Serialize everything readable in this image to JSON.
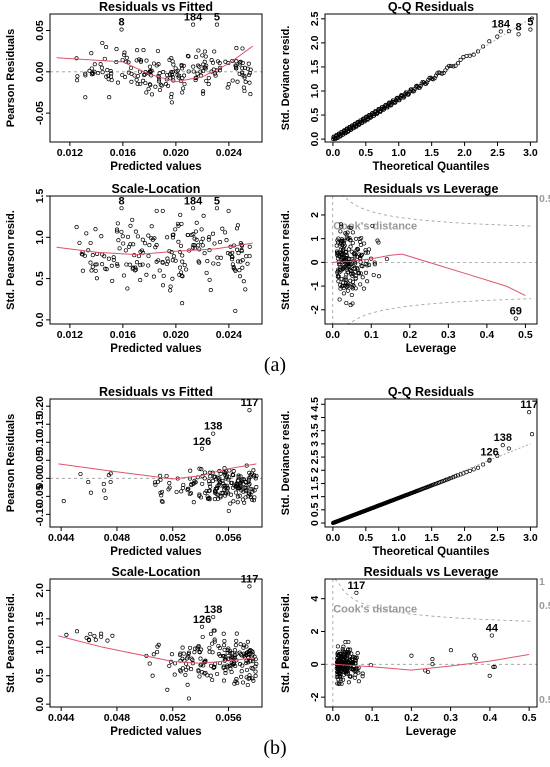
{
  "labels": {
    "a": "(a)",
    "b": "(b)"
  },
  "panels": [
    {
      "id": "a-rvf",
      "title": "Residuals vs Fitted",
      "xlabel": "Predicted values",
      "ylabel": "Pearson Residuals",
      "xlim": [
        0.0105,
        0.0265
      ],
      "ylim": [
        -0.085,
        0.07
      ],
      "xticks": [
        0.012,
        0.016,
        0.02,
        0.024
      ],
      "xtick_labels": [
        "0.012",
        "0.016",
        "0.020",
        "0.024"
      ],
      "yticks": [
        -0.05,
        0,
        0.05
      ],
      "ytick_labels": [
        "-0.05",
        "0.00",
        "0.05"
      ],
      "hline": 0,
      "n": 200,
      "seed": 11,
      "dist": "a_fit",
      "smooth": [
        [
          0.011,
          0.017
        ],
        [
          0.016,
          0.012
        ],
        [
          0.018,
          -0.003
        ],
        [
          0.02,
          -0.012
        ],
        [
          0.022,
          -0.006
        ],
        [
          0.024,
          0.01
        ],
        [
          0.0258,
          0.031
        ]
      ],
      "obs": [
        {
          "label": "8",
          "x": 0.0159,
          "y": 0.056
        },
        {
          "label": "184",
          "x": 0.0213,
          "y": 0.062
        },
        {
          "label": "5",
          "x": 0.0231,
          "y": 0.062
        }
      ]
    },
    {
      "id": "a-qq",
      "title": "Q-Q Residuals",
      "xlabel": "Theoretical Quantiles",
      "ylabel": "Std. Deviance resid.",
      "xlim": [
        -0.12,
        3.1
      ],
      "ylim": [
        -0.06,
        2.6
      ],
      "xticks": [
        0,
        0.5,
        1,
        1.5,
        2,
        2.5,
        3
      ],
      "xtick_labels": [
        "0.0",
        "0.5",
        "1.0",
        "1.5",
        "2.0",
        "2.5",
        "3.0"
      ],
      "yticks": [
        0,
        0.5,
        1,
        1.5,
        2,
        2.5
      ],
      "ytick_labels": [
        "0.0",
        "0.5",
        "1.0",
        "1.5",
        "2.0",
        "2.5"
      ],
      "refline": [
        [
          0,
          0
        ],
        [
          3,
          2.5
        ]
      ],
      "n": 200,
      "seed": 21,
      "dist": "a_qq",
      "obs": [
        {
          "label": "184",
          "x": 2.55,
          "y": 2.32
        },
        {
          "label": "8",
          "x": 2.82,
          "y": 2.26
        },
        {
          "label": "5",
          "x": 3.0,
          "y": 2.36
        }
      ]
    },
    {
      "id": "a-sl",
      "title": "Scale-Location",
      "xlabel": "Predicted values",
      "ylabel": "Std. Pearson resid.",
      "xlim": [
        0.0105,
        0.0265
      ],
      "ylim": [
        -0.05,
        1.5
      ],
      "xticks": [
        0.012,
        0.016,
        0.02,
        0.024
      ],
      "xtick_labels": [
        "0.012",
        "0.016",
        "0.020",
        "0.024"
      ],
      "yticks": [
        0,
        0.5,
        1,
        1.5
      ],
      "ytick_labels": [
        "0.0",
        "0.5",
        "1.0",
        "1.5"
      ],
      "n": 200,
      "seed": 31,
      "dist": "a_sl",
      "smooth": [
        [
          0.011,
          0.88
        ],
        [
          0.014,
          0.82
        ],
        [
          0.017,
          0.79
        ],
        [
          0.02,
          0.83
        ],
        [
          0.023,
          0.86
        ],
        [
          0.0258,
          0.93
        ]
      ],
      "obs": [
        {
          "label": "8",
          "x": 0.0159,
          "y": 1.4
        },
        {
          "label": "184",
          "x": 0.0213,
          "y": 1.4
        },
        {
          "label": "5",
          "x": 0.0231,
          "y": 1.4
        }
      ]
    },
    {
      "id": "a-rvl",
      "title": "Residuals vs Leverage",
      "xlabel": "Leverage",
      "ylabel": "Std. Pearson resid.",
      "xlim": [
        -0.02,
        0.53
      ],
      "ylim": [
        -2.6,
        2.8
      ],
      "xticks": [
        0,
        0.1,
        0.2,
        0.3,
        0.4,
        0.5
      ],
      "xtick_labels": [
        "0.0",
        "0.1",
        "0.2",
        "0.3",
        "0.4",
        "0.5"
      ],
      "yticks": [
        -2,
        -1,
        0,
        1,
        2
      ],
      "ytick_labels": [
        "-2",
        "-1",
        "0",
        "1",
        "2"
      ],
      "hline": 0,
      "vline": 0,
      "n": 200,
      "seed": 41,
      "dist": "a_lev",
      "smooth": [
        [
          0.0,
          0.0
        ],
        [
          0.05,
          0.05
        ],
        [
          0.1,
          0.15
        ],
        [
          0.15,
          0.3
        ],
        [
          0.18,
          0.35
        ],
        [
          0.25,
          0.0
        ],
        [
          0.35,
          -0.5
        ],
        [
          0.45,
          -1.0
        ],
        [
          0.5,
          -1.4
        ]
      ],
      "cook_label": "Cook's distance",
      "cook_levels": [
        "0.5"
      ],
      "obs": [
        {
          "label": "69",
          "x": 0.475,
          "y": -2.2
        }
      ]
    },
    {
      "id": "b-rvf",
      "title": "Residuals vs Fitted",
      "xlabel": "Predicted values",
      "ylabel": "Pearson Residuals",
      "xlim": [
        0.0432,
        0.0584
      ],
      "ylim": [
        -0.135,
        0.22
      ],
      "xticks": [
        0.044,
        0.048,
        0.052,
        0.056
      ],
      "xtick_labels": [
        "0.044",
        "0.048",
        "0.052",
        "0.056"
      ],
      "yticks": [
        -0.1,
        -0.05,
        0,
        0.05,
        0.1,
        0.15,
        0.2
      ],
      "ytick_labels": [
        "-0.10",
        "-0.05",
        "0.00",
        "0.05",
        "0.10",
        "0.15",
        "0.20"
      ],
      "hline": 0,
      "n": 200,
      "seed": 51,
      "dist": "b_fit",
      "smooth": [
        [
          0.0438,
          0.04
        ],
        [
          0.047,
          0.023
        ],
        [
          0.05,
          0.008
        ],
        [
          0.052,
          -0.002
        ],
        [
          0.054,
          0.007
        ],
        [
          0.0558,
          0.025
        ],
        [
          0.058,
          0.04
        ]
      ],
      "obs": [
        {
          "label": "117",
          "x": 0.0575,
          "y": 0.2
        },
        {
          "label": "138",
          "x": 0.0549,
          "y": 0.135
        },
        {
          "label": "126",
          "x": 0.0541,
          "y": 0.093
        }
      ]
    },
    {
      "id": "b-qq",
      "title": "Q-Q Residuals",
      "xlabel": "Theoretical Quantiles",
      "ylabel": "Std. Deviance resid.",
      "xlim": [
        -0.12,
        3.1
      ],
      "ylim": [
        -0.15,
        4.7
      ],
      "xticks": [
        0,
        0.5,
        1,
        1.5,
        2,
        2.5,
        3
      ],
      "xtick_labels": [
        "0.0",
        "0.5",
        "1.0",
        "1.5",
        "2.0",
        "2.5",
        "3.0"
      ],
      "yticks": [
        0,
        0.5,
        1,
        1.5,
        2,
        2.5,
        3,
        3.5,
        4,
        4.5
      ],
      "ytick_labels": [
        "0",
        "0.5",
        "1",
        "1.5",
        "2",
        "2.5",
        "3",
        "3.5",
        "4",
        "4.5"
      ],
      "refline": [
        [
          0,
          0
        ],
        [
          3,
          3
        ]
      ],
      "n": 200,
      "seed": 61,
      "dist": "b_qq",
      "obs": [
        {
          "label": "117",
          "x": 2.98,
          "y": 4.35
        },
        {
          "label": "138",
          "x": 2.58,
          "y": 3.1
        },
        {
          "label": "126",
          "x": 2.38,
          "y": 2.55
        }
      ]
    },
    {
      "id": "b-sl",
      "title": "Scale-Location",
      "xlabel": "Predicted values",
      "ylabel": "Std. Pearson resid.",
      "xlim": [
        0.0432,
        0.0584
      ],
      "ylim": [
        -0.05,
        2.2
      ],
      "xticks": [
        0.044,
        0.048,
        0.052,
        0.056
      ],
      "xtick_labels": [
        "0.044",
        "0.048",
        "0.052",
        "0.056"
      ],
      "yticks": [
        0,
        0.5,
        1,
        1.5,
        2
      ],
      "ytick_labels": [
        "0.0",
        "0.5",
        "1.0",
        "1.5",
        "2.0"
      ],
      "n": 200,
      "seed": 71,
      "dist": "b_sl",
      "smooth": [
        [
          0.0438,
          1.2
        ],
        [
          0.047,
          1.0
        ],
        [
          0.05,
          0.85
        ],
        [
          0.052,
          0.75
        ],
        [
          0.054,
          0.72
        ],
        [
          0.056,
          0.76
        ],
        [
          0.058,
          0.82
        ]
      ],
      "obs": [
        {
          "label": "117",
          "x": 0.0575,
          "y": 2.14
        },
        {
          "label": "138",
          "x": 0.0549,
          "y": 1.6
        },
        {
          "label": "126",
          "x": 0.0541,
          "y": 1.43
        }
      ]
    },
    {
      "id": "b-rvl",
      "title": "Residuals vs Leverage",
      "xlabel": "Leverage",
      "ylabel": "Std. Pearson resid.",
      "xlim": [
        -0.02,
        0.52
      ],
      "ylim": [
        -2.6,
        5.2
      ],
      "xticks": [
        0,
        0.1,
        0.2,
        0.3,
        0.4,
        0.5
      ],
      "xtick_labels": [
        "0.0",
        "0.1",
        "0.2",
        "0.3",
        "0.4",
        "0.5"
      ],
      "yticks": [
        -2,
        0,
        2,
        4
      ],
      "ytick_labels": [
        "-2",
        "0",
        "2",
        "4"
      ],
      "hline": 0,
      "vline": 0,
      "n": 200,
      "seed": 81,
      "dist": "b_lev",
      "smooth": [
        [
          0.0,
          0.0
        ],
        [
          0.1,
          -0.15
        ],
        [
          0.2,
          -0.35
        ],
        [
          0.3,
          -0.1
        ],
        [
          0.4,
          0.2
        ],
        [
          0.5,
          0.6
        ]
      ],
      "cook_label": "Cook's distance",
      "cook_levels": [
        "1",
        "0.5",
        "0.5"
      ],
      "obs": [
        {
          "label": "117",
          "x": 0.06,
          "y": 4.6
        },
        {
          "label": "44",
          "x": 0.405,
          "y": 2.0
        }
      ]
    }
  ],
  "chart_data": [
    {
      "type": "scatter",
      "title": "Residuals vs Fitted",
      "xlabel": "Predicted values",
      "ylabel": "Pearson Residuals",
      "xlim": [
        0.0105,
        0.0265
      ],
      "ylim": [
        -0.085,
        0.07
      ],
      "grid": false
    },
    {
      "type": "scatter",
      "title": "Q-Q Residuals",
      "xlabel": "Theoretical Quantiles",
      "ylabel": "Std. Deviance resid.",
      "xlim": [
        -0.12,
        3.1
      ],
      "ylim": [
        -0.06,
        2.6
      ],
      "grid": false
    },
    {
      "type": "scatter",
      "title": "Scale-Location",
      "xlabel": "Predicted values",
      "ylabel": "Std. Pearson resid.",
      "xlim": [
        0.0105,
        0.0265
      ],
      "ylim": [
        -0.05,
        1.5
      ],
      "grid": false
    },
    {
      "type": "scatter",
      "title": "Residuals vs Leverage",
      "xlabel": "Leverage",
      "ylabel": "Std. Pearson resid.",
      "xlim": [
        -0.02,
        0.53
      ],
      "ylim": [
        -2.6,
        2.8
      ],
      "grid": false
    },
    {
      "type": "scatter",
      "title": "Residuals vs Fitted",
      "xlabel": "Predicted values",
      "ylabel": "Pearson Residuals",
      "xlim": [
        0.0432,
        0.0584
      ],
      "ylim": [
        -0.135,
        0.22
      ],
      "grid": false
    },
    {
      "type": "scatter",
      "title": "Q-Q Residuals",
      "xlabel": "Theoretical Quantiles",
      "ylabel": "Std. Deviance resid.",
      "xlim": [
        -0.12,
        3.1
      ],
      "ylim": [
        -0.15,
        4.7
      ],
      "grid": false
    },
    {
      "type": "scatter",
      "title": "Scale-Location",
      "xlabel": "Predicted values",
      "ylabel": "Std. Pearson resid.",
      "xlim": [
        0.0432,
        0.0584
      ],
      "ylim": [
        -0.05,
        2.2
      ],
      "grid": false
    },
    {
      "type": "scatter",
      "title": "Residuals vs Leverage",
      "xlabel": "Leverage",
      "ylabel": "Std. Pearson resid.",
      "xlim": [
        -0.02,
        0.52
      ],
      "ylim": [
        -2.6,
        5.2
      ],
      "grid": false
    }
  ],
  "colors": {
    "points": "#000000",
    "smooth": "#df536b",
    "ref": "#9a9a9a"
  }
}
